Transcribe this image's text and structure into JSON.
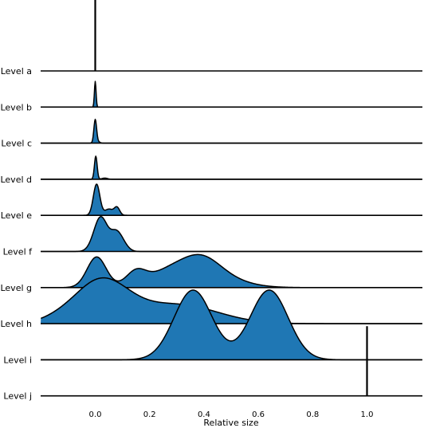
{
  "chart_data": {
    "type": "area",
    "xlabel": "Relative size",
    "ylabel": "",
    "xlim": [
      -0.2,
      1.2
    ],
    "xticks": [
      0.0,
      0.2,
      0.4,
      0.6,
      0.8,
      1.0
    ],
    "xtick_labels": [
      "0.0",
      "0.2",
      "0.4",
      "0.6",
      "0.8",
      "1.0"
    ],
    "grid": false,
    "legend": "none",
    "colors": {
      "fill": "#1f77b4",
      "line": "#000000",
      "background": "#ffffff"
    },
    "series": [
      {
        "name": "Level a",
        "peaks": [
          [
            0.0,
            0.002,
            0.0
          ]
        ],
        "spike": true,
        "rel_height": 1.95
      },
      {
        "name": "Level b",
        "peaks": [
          [
            0.0,
            0.003,
            1.0
          ]
        ],
        "rel_height": 0.7
      },
      {
        "name": "Level c",
        "peaks": [
          [
            0.0,
            0.005,
            1.0
          ],
          [
            0.012,
            0.006,
            0.05
          ]
        ],
        "rel_height": 0.65
      },
      {
        "name": "Level d",
        "peaks": [
          [
            0.002,
            0.005,
            1.0
          ],
          [
            0.035,
            0.01,
            0.05
          ]
        ],
        "rel_height": 0.63
      },
      {
        "name": "Level e",
        "peaks": [
          [
            0.005,
            0.012,
            1.0
          ],
          [
            0.05,
            0.015,
            0.2
          ],
          [
            0.08,
            0.01,
            0.25
          ]
        ],
        "rel_height": 0.85
      },
      {
        "name": "Level f",
        "peaks": [
          [
            0.02,
            0.025,
            1.0
          ],
          [
            0.075,
            0.02,
            0.45
          ],
          [
            0.1,
            0.02,
            0.2
          ]
        ],
        "rel_height": 0.95
      },
      {
        "name": "Level g",
        "peaks": [
          [
            0.005,
            0.035,
            0.75
          ],
          [
            0.15,
            0.035,
            0.3
          ],
          [
            0.35,
            0.12,
            0.65
          ],
          [
            0.4,
            0.06,
            0.2
          ]
        ],
        "rel_height": 0.9
      },
      {
        "name": "Level h",
        "peaks": [
          [
            0.02,
            0.1,
            1.0
          ],
          [
            0.3,
            0.15,
            0.45
          ],
          [
            -0.15,
            0.06,
            0.05
          ]
        ],
        "rel_height": 1.25
      },
      {
        "name": "Level i",
        "peaks": [
          [
            0.36,
            0.07,
            1.0
          ],
          [
            0.64,
            0.07,
            1.0
          ]
        ],
        "rel_height": 1.9
      },
      {
        "name": "Level j",
        "peaks": [
          [
            1.0,
            0.001,
            0.0
          ]
        ],
        "spike": true,
        "rel_height": 1.9
      }
    ]
  }
}
